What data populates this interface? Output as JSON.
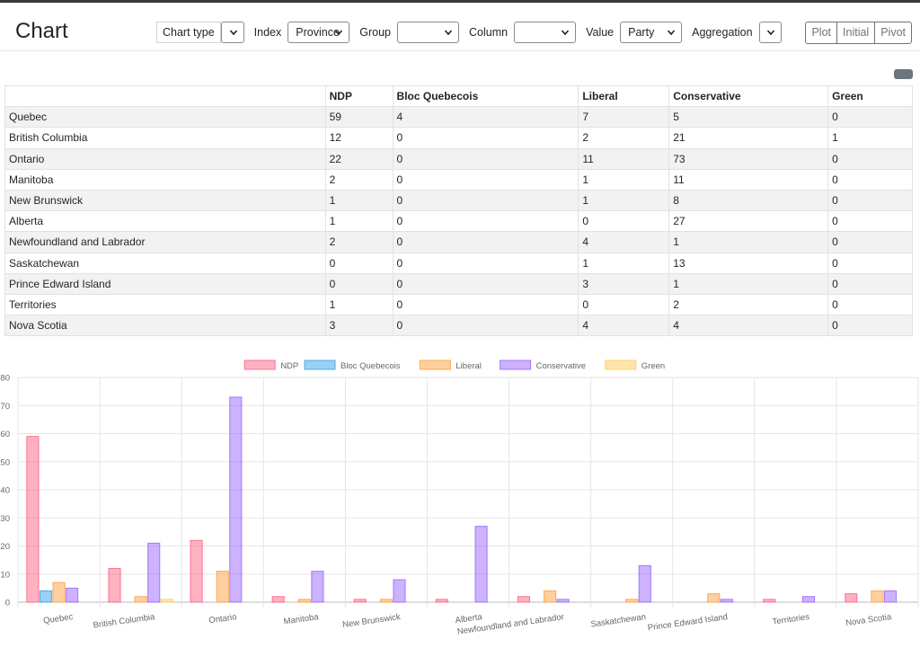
{
  "header": {
    "brand": "Chart",
    "controls": {
      "chart_type_label": "Chart type",
      "chart_type_value": "",
      "index_label": "Index",
      "index_value": "Province",
      "group_label": "Group",
      "group_value": "",
      "column_label": "Column",
      "column_value": "",
      "value_label": "Value",
      "value_value": "Party",
      "aggregation_label": "Aggregation",
      "aggregation_value": ""
    },
    "buttons": {
      "plot": "Plot",
      "initial": "Initial",
      "pivot": "Pivot"
    }
  },
  "table": {
    "columns": [
      "",
      "NDP",
      "Bloc Quebecois",
      "Liberal",
      "Conservative",
      "Green"
    ],
    "rows": [
      [
        "Quebec",
        "59",
        "4",
        "7",
        "5",
        "0"
      ],
      [
        "British Columbia",
        "12",
        "0",
        "2",
        "21",
        "1"
      ],
      [
        "Ontario",
        "22",
        "0",
        "11",
        "73",
        "0"
      ],
      [
        "Manitoba",
        "2",
        "0",
        "1",
        "11",
        "0"
      ],
      [
        "New Brunswick",
        "1",
        "0",
        "1",
        "8",
        "0"
      ],
      [
        "Alberta",
        "1",
        "0",
        "0",
        "27",
        "0"
      ],
      [
        "Newfoundland and Labrador",
        "2",
        "0",
        "4",
        "1",
        "0"
      ],
      [
        "Saskatchewan",
        "0",
        "0",
        "1",
        "13",
        "0"
      ],
      [
        "Prince Edward Island",
        "0",
        "0",
        "3",
        "1",
        "0"
      ],
      [
        "Territories",
        "1",
        "0",
        "0",
        "2",
        "0"
      ],
      [
        "Nova Scotia",
        "3",
        "0",
        "4",
        "4",
        "0"
      ]
    ]
  },
  "chart_data": {
    "type": "bar",
    "categories": [
      "Quebec",
      "British Columbia",
      "Ontario",
      "Manitoba",
      "New Brunswick",
      "Alberta",
      "Newfoundland and Labrador",
      "Saskatchewan",
      "Prince Edward Island",
      "Territories",
      "Nova Scotia"
    ],
    "series": [
      {
        "name": "NDP",
        "color": "#ff6384",
        "values": [
          59,
          12,
          22,
          2,
          1,
          1,
          2,
          0,
          0,
          1,
          3
        ]
      },
      {
        "name": "Bloc Quebecois",
        "color": "#36a2eb",
        "values": [
          4,
          0,
          0,
          0,
          0,
          0,
          0,
          0,
          0,
          0,
          0
        ]
      },
      {
        "name": "Liberal",
        "color": "#ff9f40",
        "values": [
          7,
          2,
          11,
          1,
          1,
          0,
          4,
          1,
          3,
          0,
          4
        ]
      },
      {
        "name": "Conservative",
        "color": "#9966ff",
        "values": [
          5,
          21,
          73,
          11,
          8,
          27,
          1,
          13,
          1,
          2,
          4
        ]
      },
      {
        "name": "Green",
        "color": "#ffcd56",
        "values": [
          0,
          1,
          0,
          0,
          0,
          0,
          0,
          0,
          0,
          0,
          0
        ]
      }
    ],
    "yticks": [
      "0",
      "10",
      "20",
      "30",
      "40",
      "50",
      "60",
      "70",
      "80"
    ],
    "ylim": [
      0,
      80
    ],
    "grid": true,
    "legend": "top"
  }
}
